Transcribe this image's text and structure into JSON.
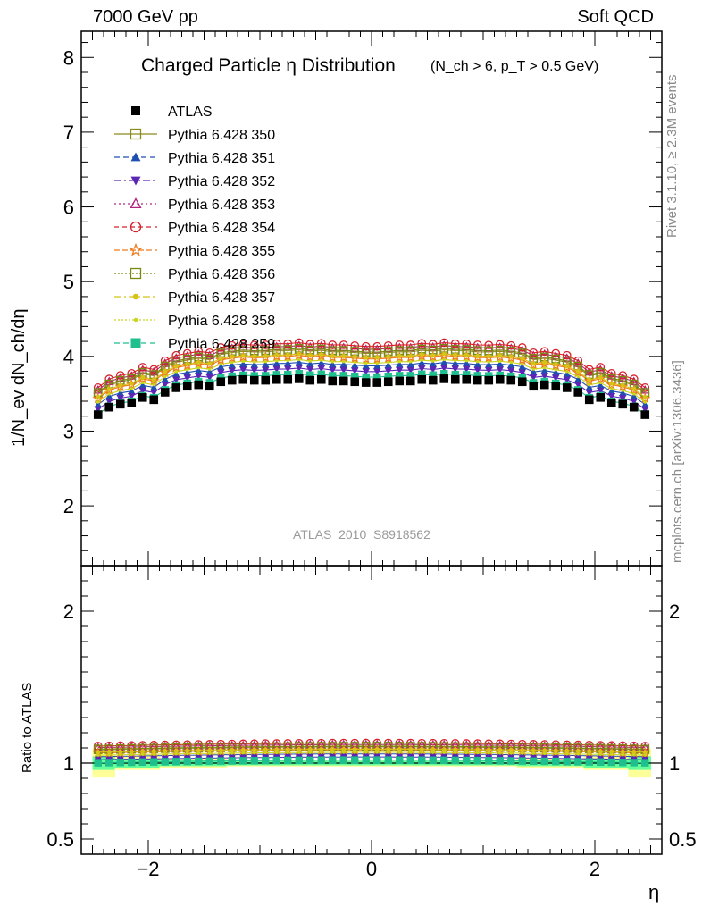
{
  "header": {
    "left": "7000 GeV pp",
    "right": "Soft QCD"
  },
  "side_labels": {
    "rivet": "Rivet 3.1.10, ≥ 2.3M events",
    "mcplots": "mcplots.cern.ch [arXiv:1306.3436]"
  },
  "watermark": "ATLAS_2010_S8918562",
  "chart_data": {
    "type": "scatter",
    "title": "Charged Particle η Distribution",
    "subtitle": "(N_ch > 6, p_T > 0.5 GeV)",
    "xlabel": "η",
    "ylabel": "1/N_ev dN_ch/dη",
    "ratio_ylabel": "Ratio to ATLAS",
    "xlim": [
      -2.6,
      2.6
    ],
    "ylim": [
      1.2,
      8.35
    ],
    "ratio_ylim": [
      0.4,
      2.3
    ],
    "x_ticks": [
      -2,
      0,
      2
    ],
    "x_tick_labels": [
      "−2",
      "0",
      "2"
    ],
    "y_ticks": [
      2,
      3,
      4,
      5,
      6,
      7,
      8
    ],
    "ratio_y_ticks": [
      0.5,
      1,
      2
    ],
    "ratio_y_tick_labels": [
      "0.5",
      "1",
      "2"
    ],
    "legend_position": "top-left",
    "x": [
      -2.45,
      -2.35,
      -2.25,
      -2.15,
      -2.05,
      -1.95,
      -1.85,
      -1.75,
      -1.65,
      -1.55,
      -1.45,
      -1.35,
      -1.25,
      -1.15,
      -1.05,
      -0.95,
      -0.85,
      -0.75,
      -0.65,
      -0.55,
      -0.45,
      -0.35,
      -0.25,
      -0.15,
      -0.05,
      0.05,
      0.15,
      0.25,
      0.35,
      0.45,
      0.55,
      0.65,
      0.75,
      0.85,
      0.95,
      1.05,
      1.15,
      1.25,
      1.35,
      1.45,
      1.55,
      1.65,
      1.75,
      1.85,
      1.95,
      2.05,
      2.15,
      2.25,
      2.35,
      2.45
    ],
    "data": {
      "name": "ATLAS",
      "values": [
        3.22,
        3.32,
        3.36,
        3.38,
        3.45,
        3.42,
        3.52,
        3.58,
        3.6,
        3.62,
        3.6,
        3.66,
        3.68,
        3.69,
        3.68,
        3.68,
        3.69,
        3.69,
        3.7,
        3.68,
        3.69,
        3.67,
        3.67,
        3.66,
        3.65,
        3.65,
        3.66,
        3.67,
        3.67,
        3.69,
        3.68,
        3.7,
        3.69,
        3.69,
        3.68,
        3.68,
        3.69,
        3.68,
        3.66,
        3.6,
        3.62,
        3.6,
        3.58,
        3.52,
        3.42,
        3.45,
        3.38,
        3.36,
        3.32,
        3.22
      ]
    },
    "ratio_band": {
      "inner": [
        0.045,
        0.045,
        0.03,
        0.03,
        0.03,
        0.03,
        0.02,
        0.02,
        0.02,
        0.02,
        0.02,
        0.02,
        0.015,
        0.015,
        0.015,
        0.015,
        0.015,
        0.015,
        0.015,
        0.015,
        0.015,
        0.015,
        0.015,
        0.015,
        0.015,
        0.015,
        0.015,
        0.015,
        0.015,
        0.015,
        0.015,
        0.015,
        0.015,
        0.015,
        0.015,
        0.015,
        0.015,
        0.015,
        0.02,
        0.02,
        0.02,
        0.02,
        0.02,
        0.02,
        0.03,
        0.03,
        0.03,
        0.03,
        0.045,
        0.045
      ],
      "outer": [
        0.095,
        0.095,
        0.045,
        0.045,
        0.045,
        0.045,
        0.03,
        0.03,
        0.03,
        0.03,
        0.03,
        0.03,
        0.022,
        0.022,
        0.022,
        0.022,
        0.022,
        0.022,
        0.022,
        0.022,
        0.022,
        0.022,
        0.022,
        0.022,
        0.022,
        0.022,
        0.022,
        0.022,
        0.022,
        0.022,
        0.022,
        0.022,
        0.022,
        0.022,
        0.022,
        0.022,
        0.022,
        0.022,
        0.03,
        0.03,
        0.03,
        0.03,
        0.03,
        0.03,
        0.045,
        0.045,
        0.045,
        0.045,
        0.095,
        0.095
      ]
    },
    "series": [
      {
        "name": "Pythia 6.428 350",
        "scale": 1.085,
        "color": "#8b8b1f",
        "marker": "square-open",
        "dash": "solid"
      },
      {
        "name": "Pythia 6.428 351",
        "scale": 1.04,
        "color": "#1f4fb0",
        "marker": "triangle-up",
        "dash": "6,4"
      },
      {
        "name": "Pythia 6.428 352",
        "scale": 1.02,
        "color": "#5b26b5",
        "marker": "triangle-down",
        "dash": "8,3,2,3"
      },
      {
        "name": "Pythia 6.428 353",
        "scale": 1.1,
        "color": "#b0267a",
        "marker": "triangle-open",
        "dash": "2,3"
      },
      {
        "name": "Pythia 6.428 354",
        "scale": 1.11,
        "color": "#d6202a",
        "marker": "circle-open",
        "dash": "5,4"
      },
      {
        "name": "Pythia 6.428 355",
        "scale": 1.065,
        "color": "#ee7a1c",
        "marker": "star-open",
        "dash": "6,3"
      },
      {
        "name": "Pythia 6.428 356",
        "scale": 1.09,
        "color": "#7a8a10",
        "marker": "square-open",
        "dash": "2,2"
      },
      {
        "name": "Pythia 6.428 357",
        "scale": 1.07,
        "color": "#d8c218",
        "marker": "dot",
        "dash": "8,3,2,3"
      },
      {
        "name": "Pythia 6.428 358",
        "scale": 1.05,
        "color": "#c7d61a",
        "marker": "small-dot",
        "dash": "2,2"
      },
      {
        "name": "Pythia 6.428 359",
        "scale": 1.0,
        "color": "#1fbf8e",
        "marker": "square",
        "dash": "6,4"
      }
    ]
  },
  "colors": {
    "band_outer": "#ffff99",
    "band_inner": "#66ff99",
    "data": "#000000",
    "side_text": "#8a8a8a"
  }
}
